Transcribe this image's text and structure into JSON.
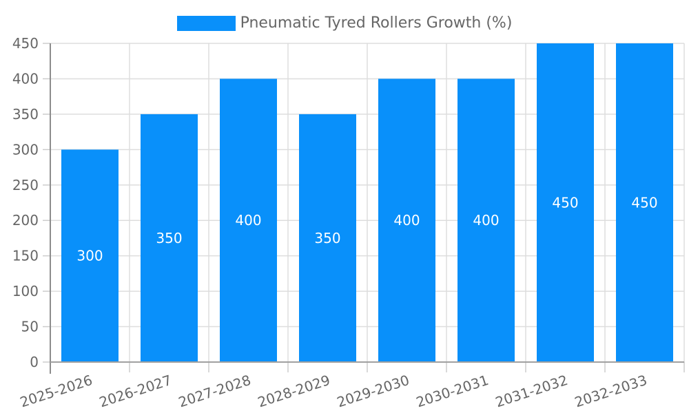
{
  "chart_data": {
    "type": "bar",
    "title": "",
    "legend_label": "Pneumatic Tyred Rollers Growth (%)",
    "legend_position": "top-center",
    "categories": [
      "2025-2026",
      "2026-2027",
      "2027-2028",
      "2028-2029",
      "2029-2030",
      "2030-2031",
      "2031-2032",
      "2032-2033"
    ],
    "values": [
      300,
      350,
      400,
      350,
      400,
      400,
      450,
      450
    ],
    "xlabel": "",
    "ylabel": "",
    "ylim": [
      0,
      450
    ],
    "yticks": [
      0,
      50,
      100,
      150,
      200,
      250,
      300,
      350,
      400,
      450
    ],
    "grid": true,
    "x_label_rotation_deg": -18,
    "colors": {
      "bar": "#0990fa",
      "grid": "#dddddd",
      "tick_stub": "#cccccc",
      "axis": "#a0a0a0",
      "tick_text": "#666666",
      "data_label_text": "#ffffff"
    }
  }
}
